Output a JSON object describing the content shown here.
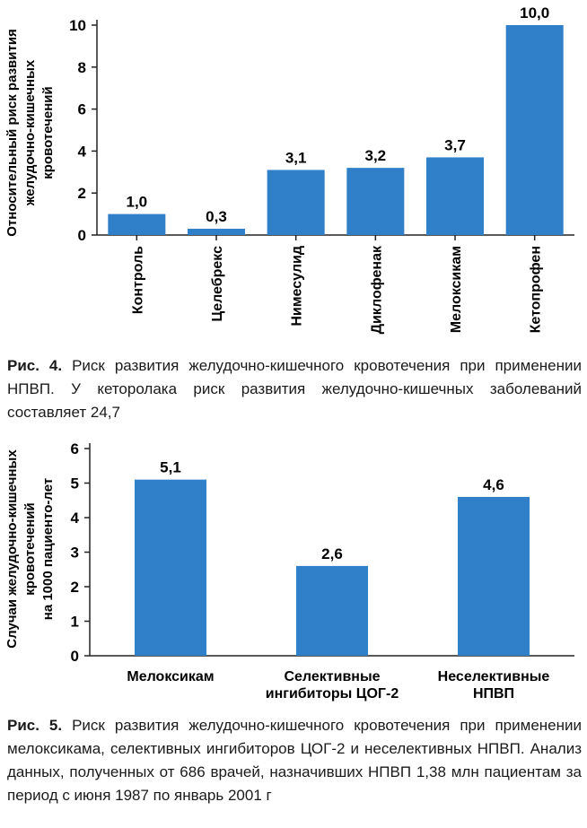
{
  "chart_data": [
    {
      "type": "bar",
      "categories": [
        "Контроль",
        "Целебрекс",
        "Нимесулид",
        "Диклофенак",
        "Мелоксикам",
        "Кетопрофен"
      ],
      "values": [
        1.0,
        0.3,
        3.1,
        3.2,
        3.7,
        10.0
      ],
      "value_labels": [
        "1,0",
        "0,3",
        "3,1",
        "3,2",
        "3,7",
        "10,0"
      ],
      "ylabel_lines": [
        "Относительный риск развития",
        "желудочно-кишечных",
        "кровотечений"
      ],
      "yticks": [
        0,
        2,
        4,
        6,
        8,
        10
      ],
      "ylim": [
        0,
        10
      ],
      "bar_color": "#2f80c8",
      "grid": false
    },
    {
      "type": "bar",
      "categories": [
        [
          "Мелоксикам"
        ],
        [
          "Селективные",
          "ингибиторы ЦОГ-2"
        ],
        [
          "Неселективные",
          "НПВП"
        ]
      ],
      "values": [
        5.1,
        2.6,
        4.6
      ],
      "value_labels": [
        "5,1",
        "2,6",
        "4,6"
      ],
      "ylabel_lines": [
        "Случаи желудочно-кишечных",
        "кровотечений",
        "на 1000 пациенто-лет"
      ],
      "yticks": [
        0,
        1,
        2,
        3,
        4,
        5,
        6
      ],
      "ylim": [
        0,
        6
      ],
      "bar_color": "#2f80c8",
      "grid": false
    }
  ],
  "captions": {
    "fig4_label": "Рис. 4.",
    "fig4_text": "Риск развития желудочно-кишечного кровотечения при применении НПВП. У кеторолака риск развития желудочно-кишечных заболеваний составляет 24,7",
    "fig5_label": "Рис. 5.",
    "fig5_text": "Риск развития желудочно-кишечного кровотечения при применении мелоксикама, селективных ингибиторов ЦОГ-2 и неселективных НПВП. Анализ данных, полученных от 686 врачей, назначивших НПВП 1,38 млн пациентам за период с июня 1987 по январь 2001 г"
  }
}
